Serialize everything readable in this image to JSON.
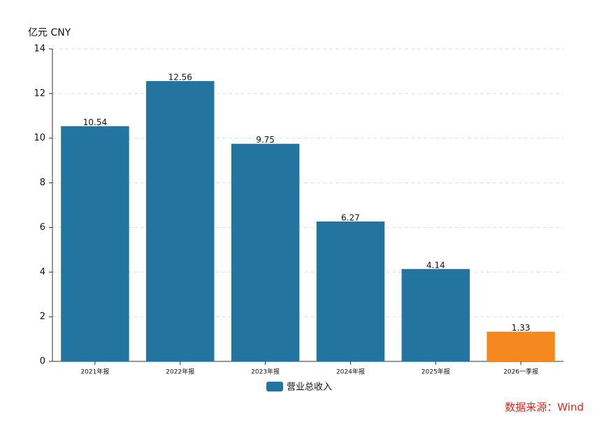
{
  "chart_data": {
    "type": "bar",
    "y_label": "亿元  CNY",
    "categories": [
      "2021年报",
      "2022年报",
      "2023年报",
      "2024年报",
      "2025年报",
      "2026一季报"
    ],
    "series": [
      {
        "name": "营业总收入",
        "color": "#2474a0",
        "values": [
          10.54,
          12.56,
          9.75,
          6.27,
          4.14,
          1.33
        ]
      }
    ],
    "bar_colors": [
      "#2474a0",
      "#2474a0",
      "#2474a0",
      "#2474a0",
      "#2474a0",
      "#f5891f"
    ],
    "ylim": [
      0,
      14
    ],
    "yticks": [
      0,
      2,
      4,
      6,
      8,
      10,
      12,
      14
    ],
    "grid": true,
    "source": "数据来源：Wind"
  }
}
